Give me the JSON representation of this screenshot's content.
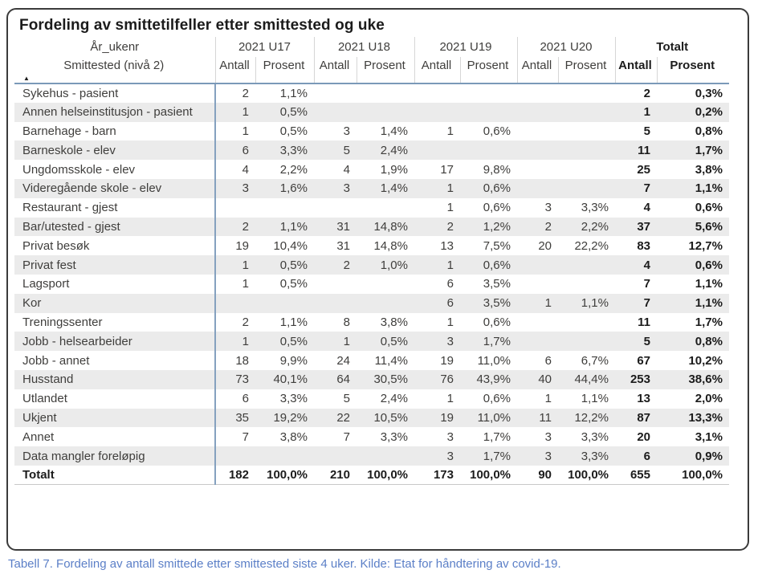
{
  "title": "Fordeling av smittetilfeller etter smittested og uke",
  "caption": "Tabell 7. Fordeling av antall smittede etter smittested siste 4 uker. Kilde: Etat for håndtering av covid-19.",
  "table": {
    "row_dimension_label": "År_ukenr",
    "row_header_label": "Smittested (nivå 2)",
    "sort_glyph": "▲",
    "sub_columns": [
      "Antall",
      "Prosent"
    ]
  },
  "colors": {
    "accent_line": "#7b99b8",
    "stripe": "#ebebeb",
    "caption_blue": "#5b7fc7",
    "card_border": "#3b3b3b"
  },
  "chart_data": {
    "type": "table",
    "title": "Fordeling av smittetilfeller etter smittested og uke",
    "row_dimension": "Smittested (nivå 2)",
    "column_dimension": "År_ukenr",
    "column_groups": [
      "2021 U17",
      "2021 U18",
      "2021 U19",
      "2021 U20",
      "Totalt"
    ],
    "sub_columns": [
      "Antall",
      "Prosent"
    ],
    "rows": [
      [
        "Sykehus - pasient",
        "2",
        "1,1%",
        "",
        "",
        "",
        "",
        "",
        "",
        "2",
        "0,3%"
      ],
      [
        "Annen helseinstitusjon - pasient",
        "1",
        "0,5%",
        "",
        "",
        "",
        "",
        "",
        "",
        "1",
        "0,2%"
      ],
      [
        "Barnehage - barn",
        "1",
        "0,5%",
        "3",
        "1,4%",
        "1",
        "0,6%",
        "",
        "",
        "5",
        "0,8%"
      ],
      [
        "Barneskole - elev",
        "6",
        "3,3%",
        "5",
        "2,4%",
        "",
        "",
        "",
        "",
        "11",
        "1,7%"
      ],
      [
        "Ungdomsskole - elev",
        "4",
        "2,2%",
        "4",
        "1,9%",
        "17",
        "9,8%",
        "",
        "",
        "25",
        "3,8%"
      ],
      [
        "Videregående skole - elev",
        "3",
        "1,6%",
        "3",
        "1,4%",
        "1",
        "0,6%",
        "",
        "",
        "7",
        "1,1%"
      ],
      [
        "Restaurant - gjest",
        "",
        "",
        "",
        "",
        "1",
        "0,6%",
        "3",
        "3,3%",
        "4",
        "0,6%"
      ],
      [
        "Bar/utested - gjest",
        "2",
        "1,1%",
        "31",
        "14,8%",
        "2",
        "1,2%",
        "2",
        "2,2%",
        "37",
        "5,6%"
      ],
      [
        "Privat besøk",
        "19",
        "10,4%",
        "31",
        "14,8%",
        "13",
        "7,5%",
        "20",
        "22,2%",
        "83",
        "12,7%"
      ],
      [
        "Privat fest",
        "1",
        "0,5%",
        "2",
        "1,0%",
        "1",
        "0,6%",
        "",
        "",
        "4",
        "0,6%"
      ],
      [
        "Lagsport",
        "1",
        "0,5%",
        "",
        "",
        "6",
        "3,5%",
        "",
        "",
        "7",
        "1,1%"
      ],
      [
        "Kor",
        "",
        "",
        "",
        "",
        "6",
        "3,5%",
        "1",
        "1,1%",
        "7",
        "1,1%"
      ],
      [
        "Treningssenter",
        "2",
        "1,1%",
        "8",
        "3,8%",
        "1",
        "0,6%",
        "",
        "",
        "11",
        "1,7%"
      ],
      [
        "Jobb - helsearbeider",
        "1",
        "0,5%",
        "1",
        "0,5%",
        "3",
        "1,7%",
        "",
        "",
        "5",
        "0,8%"
      ],
      [
        "Jobb - annet",
        "18",
        "9,9%",
        "24",
        "11,4%",
        "19",
        "11,0%",
        "6",
        "6,7%",
        "67",
        "10,2%"
      ],
      [
        "Husstand",
        "73",
        "40,1%",
        "64",
        "30,5%",
        "76",
        "43,9%",
        "40",
        "44,4%",
        "253",
        "38,6%"
      ],
      [
        "Utlandet",
        "6",
        "3,3%",
        "5",
        "2,4%",
        "1",
        "0,6%",
        "1",
        "1,1%",
        "13",
        "2,0%"
      ],
      [
        "Ukjent",
        "35",
        "19,2%",
        "22",
        "10,5%",
        "19",
        "11,0%",
        "11",
        "12,2%",
        "87",
        "13,3%"
      ],
      [
        "Annet",
        "7",
        "3,8%",
        "7",
        "3,3%",
        "3",
        "1,7%",
        "3",
        "3,3%",
        "20",
        "3,1%"
      ],
      [
        "Data mangler foreløpig",
        "",
        "",
        "",
        "",
        "3",
        "1,7%",
        "3",
        "3,3%",
        "6",
        "0,9%"
      ]
    ],
    "total_row": [
      "Totalt",
      "182",
      "100,0%",
      "210",
      "100,0%",
      "173",
      "100,0%",
      "90",
      "100,0%",
      "655",
      "100,0%"
    ]
  }
}
